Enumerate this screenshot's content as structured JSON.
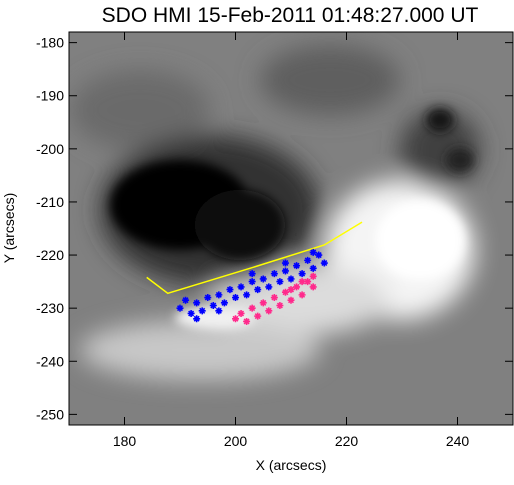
{
  "chart_data": {
    "type": "scatter",
    "title": "SDO HMI 15-Feb-2011 01:48:27.000 UT",
    "x_label": "X (arcsecs)",
    "y_label": "Y (arcsecs)",
    "xlim": [
      170,
      250
    ],
    "ylim": [
      -252,
      -178
    ],
    "xticks": [
      180,
      200,
      220,
      240
    ],
    "yticks": [
      -180,
      -190,
      -200,
      -210,
      -220,
      -230,
      -240,
      -250
    ],
    "line": {
      "color": "#ffff00",
      "x": [
        184,
        187.8,
        202.6,
        216,
        222.8
      ],
      "y": [
        -224.2,
        -227.2,
        -222.5,
        -218.1,
        -213.8
      ]
    },
    "series": [
      {
        "color": "#0000ff",
        "x": [
          190,
          191,
          192,
          193,
          194,
          195,
          196,
          197,
          198,
          199,
          200,
          201,
          202,
          203,
          204,
          205,
          206,
          207,
          208,
          209,
          210,
          211,
          212,
          213,
          214,
          215,
          216,
          214,
          209,
          203,
          197,
          193
        ],
        "y": [
          -230,
          -228.5,
          -231,
          -229,
          -230.5,
          -228,
          -229.5,
          -227.5,
          -229,
          -226.5,
          -228,
          -226,
          -227.5,
          -225,
          -226.5,
          -224.5,
          -226,
          -223.5,
          -225,
          -223,
          -224.5,
          -222,
          -223.5,
          -221,
          -222.5,
          -220,
          -221.5,
          -219.5,
          -221.5,
          -223.5,
          -230.5,
          -232
        ]
      },
      {
        "color": "#ff2a8c",
        "x": [
          200,
          201,
          202,
          203,
          204,
          205,
          206,
          207,
          208,
          209,
          210,
          211,
          212,
          213,
          214,
          214,
          212,
          210
        ],
        "y": [
          -232,
          -231,
          -232.5,
          -230,
          -231.5,
          -229,
          -230.5,
          -228,
          -229.5,
          -227,
          -228.5,
          -226,
          -227.5,
          -225,
          -226,
          -224,
          -225,
          -226.5
        ]
      }
    ]
  }
}
